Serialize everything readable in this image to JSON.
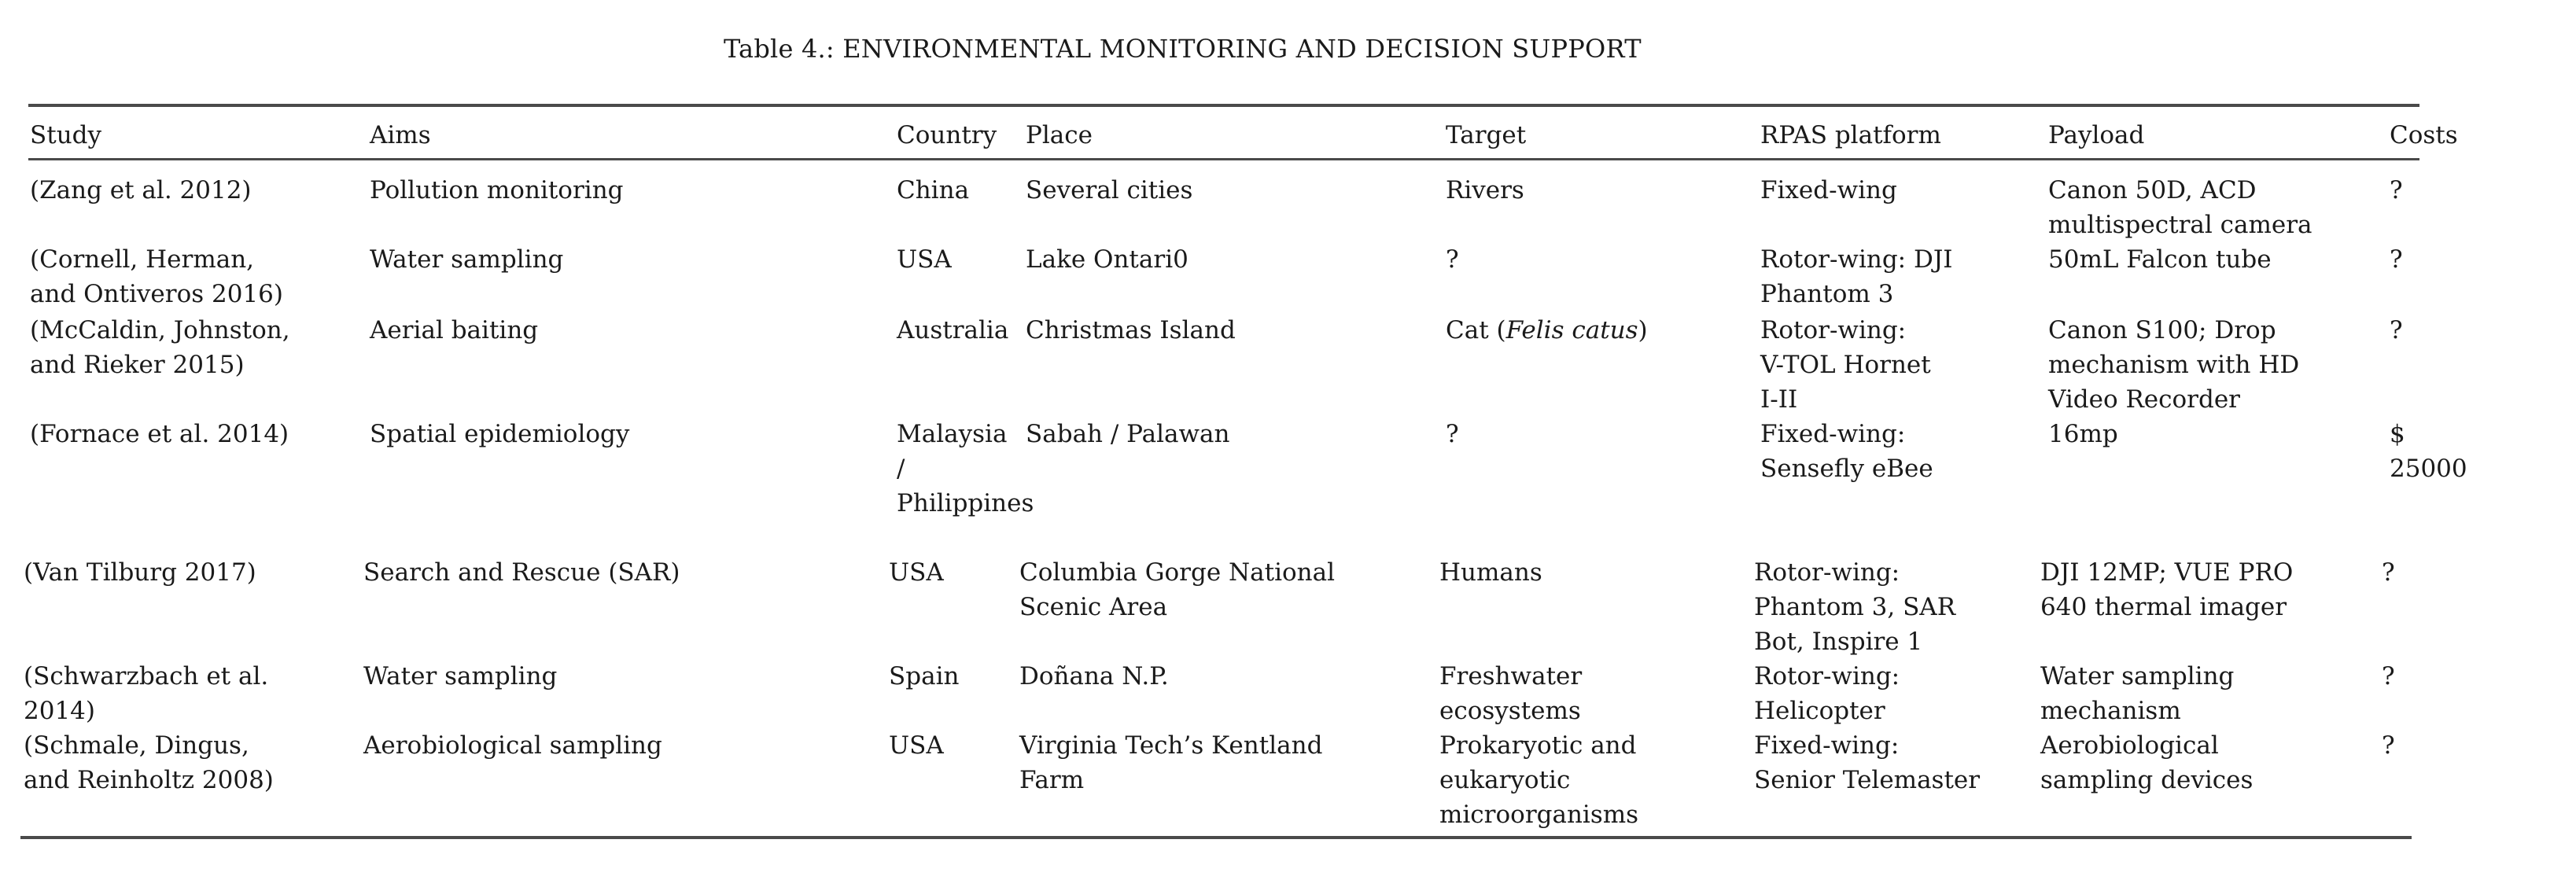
{
  "table": {
    "caption": "Table 4.: ENVIRONMENTAL MONITORING AND DECISION SUPPORT",
    "headers": [
      "Study",
      "Aims",
      "Country",
      "Place",
      "Target",
      "RPAS platform",
      "Payload",
      "Costs"
    ],
    "rows": [
      {
        "study": "(Zang et al. 2012)",
        "aims": "Pollution monitoring",
        "country": "China",
        "place": "Several cities",
        "target": "Rivers",
        "platform": "Fixed-wing",
        "payload": "Canon 50D, ACD\nmultispectral camera",
        "costs": "?"
      },
      {
        "study": "(Cornell, Herman,\nand Ontiveros 2016)",
        "aims": "Water sampling",
        "country": "USA",
        "place": "Lake Ontari0",
        "target": "?",
        "platform": "Rotor-wing: DJI\nPhantom 3",
        "payload": "50mL Falcon tube",
        "costs": "?"
      },
      {
        "study": "(McCaldin, Johnston,\nand Rieker 2015)",
        "aims": "Aerial baiting",
        "country": "Australia",
        "place": "Christmas Island",
        "target_prefix": "Cat (",
        "target_em": "Felis catus",
        "target_suffix": ")",
        "platform": "Rotor-wing:\nV-TOL Hornet\nI-II",
        "payload": "Canon S100; Drop\nmechanism with HD\nVideo Recorder",
        "costs": "?"
      },
      {
        "study": "(Fornace et al. 2014)",
        "aims": "Spatial epidemiology",
        "country": "Malaysia\n/\nPhilippines",
        "place": "Sabah / Palawan",
        "target": "?",
        "platform": "Fixed-wing:\nSensefly eBee",
        "payload": "16mp",
        "costs": "$\n25000"
      },
      {
        "study": "(Van Tilburg 2017)",
        "aims": "Search and Rescue (SAR)",
        "country": "USA",
        "place": "Columbia Gorge National\nScenic Area",
        "target": "Humans",
        "platform": "Rotor-wing:\nPhantom 3, SAR\nBot, Inspire 1",
        "payload": "DJI 12MP; VUE PRO\n640 thermal imager",
        "costs": "?"
      },
      {
        "study": "(Schwarzbach et al.\n2014)",
        "aims": "Water sampling",
        "country": "Spain",
        "place": "Doñana N.P.",
        "target": "Freshwater\necosystems",
        "platform": "Rotor-wing:\nHelicopter",
        "payload": "Water sampling\nmechanism",
        "costs": "?"
      },
      {
        "study": "(Schmale, Dingus,\nand Reinholtz 2008)",
        "aims": "Aerobiological sampling",
        "country": "USA",
        "place": "Virginia Tech’s Kentland\nFarm",
        "target": "Prokaryotic and\neukaryotic\nmicroorganisms",
        "platform": "Fixed-wing:\nSenior Telemaster",
        "payload": "Aerobiological\nsampling devices",
        "costs": "?"
      }
    ]
  }
}
